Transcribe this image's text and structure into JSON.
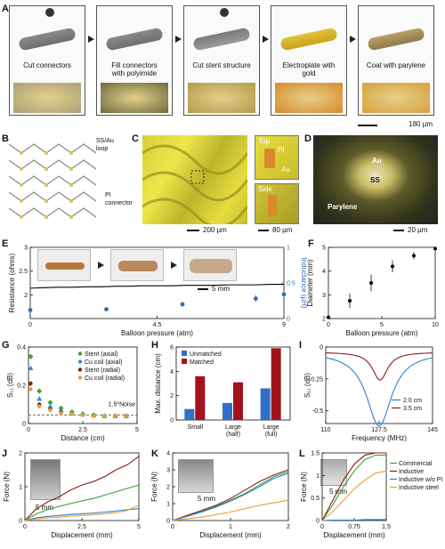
{
  "panels": {
    "A": "A",
    "B": "B",
    "C": "C",
    "D": "D",
    "E": "E",
    "F": "F",
    "G": "G",
    "H": "H",
    "I": "I",
    "J": "J",
    "K": "K",
    "L": "L"
  },
  "panelA": {
    "steps": [
      "Cut connectors",
      "Fill connectors\nwith polyimide",
      "Cut stent structure",
      "Electroplate with\ngold",
      "Coat with parylene"
    ],
    "scale": "180 µm"
  },
  "panelB": {
    "loop_label": "SS/Au\nloop",
    "connector_label": "PI\nconnector"
  },
  "panelC": {
    "top": "Top",
    "side": "Side",
    "pi": "PI",
    "au": "Au",
    "scale1": "200 µm",
    "scale2": "80 µm"
  },
  "panelD": {
    "au": "Au",
    "ss": "SS",
    "parylene": "Parylene",
    "scale": "20 µm"
  },
  "panelE": {
    "scale": "5 mm"
  },
  "panelJ": {
    "scale": "5 mm"
  },
  "panelK": {
    "scale": "5 mm"
  },
  "panelL": {
    "scale": "5 mm"
  },
  "chart_data": [
    {
      "id": "E",
      "type": "line",
      "xlabel": "Balloon pressure (atm)",
      "ylabel": "Resistance (ohms)",
      "y2label": "Inductance (µH)",
      "xlim": [
        0,
        9
      ],
      "ylim": [
        1.5,
        3
      ],
      "y2lim": [
        0,
        1
      ],
      "xticks": [
        0,
        4.5,
        9
      ],
      "yticks": [
        2,
        2.5,
        3
      ],
      "y2ticks": [
        0,
        0.5,
        1
      ],
      "series": [
        {
          "axis": "left",
          "color": "#000000",
          "x": [
            0,
            0.5,
            1,
            1.5,
            2,
            2.5,
            3,
            3.5,
            4,
            4.5,
            5,
            5.5,
            6,
            6.5,
            7,
            7.5,
            8,
            8.5,
            9
          ],
          "y": [
            2.14,
            2.15,
            2.16,
            2.16,
            2.17,
            2.17,
            2.18,
            2.18,
            2.19,
            2.19,
            2.19,
            2.2,
            2.2,
            2.2,
            2.21,
            2.21,
            2.21,
            2.22,
            2.22
          ]
        },
        {
          "axis": "right",
          "color": "#2e6fb5",
          "x": [
            0,
            2.7,
            5.4,
            8,
            9
          ],
          "y": [
            0.12,
            0.13,
            0.2,
            0.28,
            0.34
          ],
          "err": [
            0.02,
            0.02,
            0.03,
            0.05,
            0.05
          ]
        }
      ]
    },
    {
      "id": "F",
      "type": "scatter",
      "xlabel": "Balloon pressure (atm)",
      "ylabel": "Diameter (mm)",
      "xlim": [
        0,
        10
      ],
      "ylim": [
        2,
        5
      ],
      "xticks": [
        0,
        5,
        10
      ],
      "yticks": [
        2,
        3,
        4,
        5
      ],
      "series": [
        {
          "color": "#000000",
          "x": [
            0,
            2,
            4,
            6,
            8,
            10
          ],
          "y": [
            2.05,
            2.75,
            3.5,
            4.2,
            4.65,
            4.95
          ],
          "err": [
            0,
            0.3,
            0.35,
            0.25,
            0.15,
            0.05
          ]
        }
      ]
    },
    {
      "id": "G",
      "type": "scatter",
      "xlabel": "Distance (cm)",
      "ylabel": "S₁₁ (dB)",
      "xlim": [
        0,
        5
      ],
      "ylim": [
        0,
        0.4
      ],
      "xticks": [
        0,
        2.5,
        5
      ],
      "yticks": [
        0,
        0.2,
        0.4
      ],
      "noise_label": "1.5*Noise",
      "noise_level": 0.045,
      "series": [
        {
          "name": "Stent (axial)",
          "color": "#3aa335",
          "marker": "diamond",
          "x": [
            0.1,
            0.5,
            1,
            1.5,
            2,
            2.5,
            3,
            3.5,
            4,
            4.5
          ],
          "y": [
            0.35,
            0.17,
            0.11,
            0.08,
            0.06,
            0.05,
            0.045,
            0.04,
            0.04,
            0.04
          ]
        },
        {
          "name": "Cu coil (axial)",
          "color": "#2f8fd6",
          "marker": "triangle",
          "x": [
            0.1,
            0.5,
            1,
            1.5,
            2,
            2.5,
            3,
            3.5,
            4,
            4.5
          ],
          "y": [
            0.29,
            0.13,
            0.09,
            0.07,
            0.055,
            0.05,
            0.045,
            0.04,
            0.04,
            0.04
          ]
        },
        {
          "name": "Stent (radial)",
          "color": "#8b1a1a",
          "marker": "circle",
          "x": [
            0.1,
            0.5,
            1,
            1.5,
            2,
            2.5,
            3,
            3.5,
            4,
            4.5
          ],
          "y": [
            0.21,
            0.1,
            0.075,
            0.06,
            0.05,
            0.045,
            0.04,
            0.04,
            0.04,
            0.04
          ]
        },
        {
          "name": "Cu coil (radial)",
          "color": "#e8a030",
          "marker": "circle",
          "x": [
            0.1,
            0.5,
            1,
            1.5,
            2,
            2.5,
            3,
            3.5,
            4,
            4.5
          ],
          "y": [
            0.18,
            0.09,
            0.07,
            0.055,
            0.05,
            0.045,
            0.04,
            0.04,
            0.04,
            0.04
          ]
        }
      ]
    },
    {
      "id": "H",
      "type": "bar",
      "ylabel": "Max. distance (cm)",
      "categories": [
        "Small",
        "Large\n(half)",
        "Large\n(full)"
      ],
      "ylim": [
        0,
        6
      ],
      "yticks": [
        0,
        2,
        4,
        6
      ],
      "series": [
        {
          "name": "Unmatched",
          "color": "#2f6fc9",
          "values": [
            0.9,
            1.4,
            2.6
          ]
        },
        {
          "name": "Matched",
          "color": "#a3131c",
          "values": [
            3.6,
            3.1,
            5.9
          ]
        }
      ]
    },
    {
      "id": "I",
      "type": "line",
      "xlabel": "Frequency (MHz)",
      "ylabel": "S₁₁ (dB)",
      "xlim": [
        110,
        145
      ],
      "ylim": [
        -0.6,
        0
      ],
      "xticks": [
        110,
        127.5,
        145
      ],
      "yticks": [
        0,
        -0.25,
        -0.5
      ],
      "yticklabels": [
        "0",
        "-0.25",
        "-0.5"
      ],
      "series": [
        {
          "name": "2.0 cm",
          "color": "#2f7fd0",
          "center": 127.5,
          "depth": 0.58,
          "width": 5
        },
        {
          "name": "3.5 cm",
          "color": "#8b1a2a",
          "center": 127.8,
          "depth": 0.22,
          "width": 3
        }
      ]
    },
    {
      "id": "J",
      "type": "line",
      "xlabel": "Displacement (mm)",
      "ylabel": "Force (N)",
      "xlim": [
        0,
        5
      ],
      "ylim": [
        0,
        2
      ],
      "xticks": [
        0,
        2.5,
        5
      ],
      "yticks": [
        0,
        1,
        2
      ],
      "series": [
        {
          "color": "#8b1a1a",
          "x": [
            0,
            0.5,
            1,
            1.5,
            2,
            2.5,
            3,
            3.5,
            4,
            4.5,
            5
          ],
          "y": [
            0,
            0.35,
            0.55,
            0.7,
            0.9,
            1.05,
            1.15,
            1.3,
            1.5,
            1.65,
            1.9
          ]
        },
        {
          "color": "#3aa335",
          "x": [
            0,
            0.5,
            1,
            1.5,
            2,
            2.5,
            3,
            3.5,
            4,
            4.5,
            5
          ],
          "y": [
            0,
            0.2,
            0.32,
            0.42,
            0.5,
            0.58,
            0.65,
            0.75,
            0.85,
            0.95,
            1.05
          ]
        },
        {
          "color": "#2f7fd0",
          "x": [
            0,
            0.5,
            1,
            1.5,
            2,
            2.5,
            3,
            3.5,
            4,
            4.5,
            5
          ],
          "y": [
            0,
            0.08,
            0.12,
            0.15,
            0.18,
            0.2,
            0.22,
            0.25,
            0.28,
            0.32,
            0.35
          ]
        },
        {
          "color": "#e8a030",
          "x": [
            0,
            0.5,
            1,
            1.5,
            2,
            2.5,
            3,
            3.5,
            4,
            4.5,
            5
          ],
          "y": [
            0,
            0.05,
            0.08,
            0.1,
            0.13,
            0.15,
            0.17,
            0.2,
            0.23,
            0.3,
            0.45
          ]
        }
      ]
    },
    {
      "id": "K",
      "type": "line",
      "xlabel": "Displacement (mm)",
      "ylabel": "Force (N)",
      "xlim": [
        0,
        2
      ],
      "ylim": [
        0,
        4
      ],
      "xticks": [
        0,
        1,
        2
      ],
      "yticks": [
        0,
        1,
        2,
        3,
        4
      ],
      "series": [
        {
          "color": "#8b1a1a",
          "x": [
            0,
            0.25,
            0.5,
            0.75,
            1,
            1.25,
            1.5,
            1.75,
            2
          ],
          "y": [
            0,
            0.3,
            0.6,
            0.9,
            1.3,
            1.8,
            2.3,
            2.7,
            3.0
          ]
        },
        {
          "color": "#3aa335",
          "x": [
            0,
            0.25,
            0.5,
            0.75,
            1,
            1.25,
            1.5,
            1.75,
            2
          ],
          "y": [
            0,
            0.25,
            0.55,
            0.85,
            1.2,
            1.6,
            2.1,
            2.6,
            2.9
          ]
        },
        {
          "color": "#2f7fd0",
          "x": [
            0,
            0.25,
            0.5,
            0.75,
            1,
            1.25,
            1.5,
            1.75,
            2
          ],
          "y": [
            0,
            0.25,
            0.5,
            0.8,
            1.15,
            1.55,
            2.0,
            2.5,
            2.8
          ]
        },
        {
          "color": "#e8a030",
          "x": [
            0,
            0.25,
            0.5,
            0.75,
            1,
            1.25,
            1.5,
            1.75,
            2
          ],
          "y": [
            0,
            0.1,
            0.2,
            0.35,
            0.5,
            0.7,
            0.9,
            1.05,
            1.2
          ]
        }
      ]
    },
    {
      "id": "L",
      "type": "line",
      "xlabel": "Displacement (mm)",
      "ylabel": "Force (N)",
      "xlim": [
        0,
        1.5
      ],
      "ylim": [
        0,
        1.5
      ],
      "xticks": [
        0,
        0.75,
        1.5
      ],
      "yticks": [
        0,
        0.5,
        1,
        1.5
      ],
      "series": [
        {
          "name": "Commercial",
          "color": "#3aa335",
          "x": [
            0,
            0.25,
            0.5,
            0.75,
            1,
            1.25,
            1.5
          ],
          "y": [
            0,
            0.35,
            0.75,
            1.1,
            1.35,
            1.45,
            1.45
          ]
        },
        {
          "name": "Inductive",
          "color": "#8b1a1a",
          "x": [
            0,
            0.25,
            0.5,
            0.75,
            1,
            1.25,
            1.5
          ],
          "y": [
            0,
            0.45,
            0.9,
            1.25,
            1.45,
            1.5,
            1.5
          ]
        },
        {
          "name": "Inductive w/o PI",
          "color": "#2f7fd0",
          "x": [
            0,
            0.25,
            0.5,
            0.75,
            1,
            1.25,
            1.5
          ],
          "y": [
            0,
            0.01,
            0.01,
            0.01,
            0.02,
            0.02,
            0.02
          ]
        },
        {
          "name": "Inductive steel",
          "color": "#e8a030",
          "x": [
            0,
            0.25,
            0.5,
            0.75,
            1,
            1.25,
            1.5
          ],
          "y": [
            0,
            0.2,
            0.45,
            0.7,
            0.9,
            1.05,
            1.1
          ]
        }
      ]
    }
  ]
}
